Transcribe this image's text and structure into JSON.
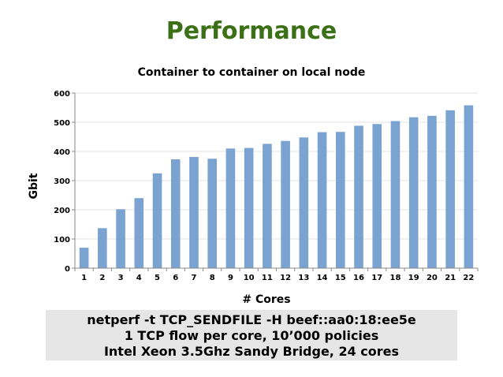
{
  "slide": {
    "title": "Performance"
  },
  "chart_data": {
    "type": "bar",
    "title": "Container to container on local node",
    "xlabel": "# Cores",
    "ylabel": "Gbit",
    "categories": [
      "1",
      "2",
      "3",
      "4",
      "5",
      "6",
      "7",
      "8",
      "9",
      "10",
      "11",
      "12",
      "13",
      "14",
      "15",
      "16",
      "17",
      "18",
      "19",
      "20",
      "21",
      "22"
    ],
    "values": [
      70,
      137,
      202,
      240,
      325,
      373,
      381,
      375,
      410,
      412,
      426,
      436,
      448,
      466,
      467,
      488,
      494,
      504,
      517,
      522,
      541,
      558
    ],
    "ylim": [
      0,
      600
    ],
    "yticks": [
      "0",
      "100",
      "200",
      "300",
      "400",
      "500",
      "600"
    ],
    "grid": true,
    "bar_color": "#7aa3d2"
  },
  "caption": {
    "line1": "netperf -t TCP_SENDFILE -H beef::aa0:18:ee5e",
    "line2": "1 TCP flow per core, 10’000 policies",
    "line3": "Intel Xeon 3.5Ghz Sandy Bridge, 24 cores"
  }
}
